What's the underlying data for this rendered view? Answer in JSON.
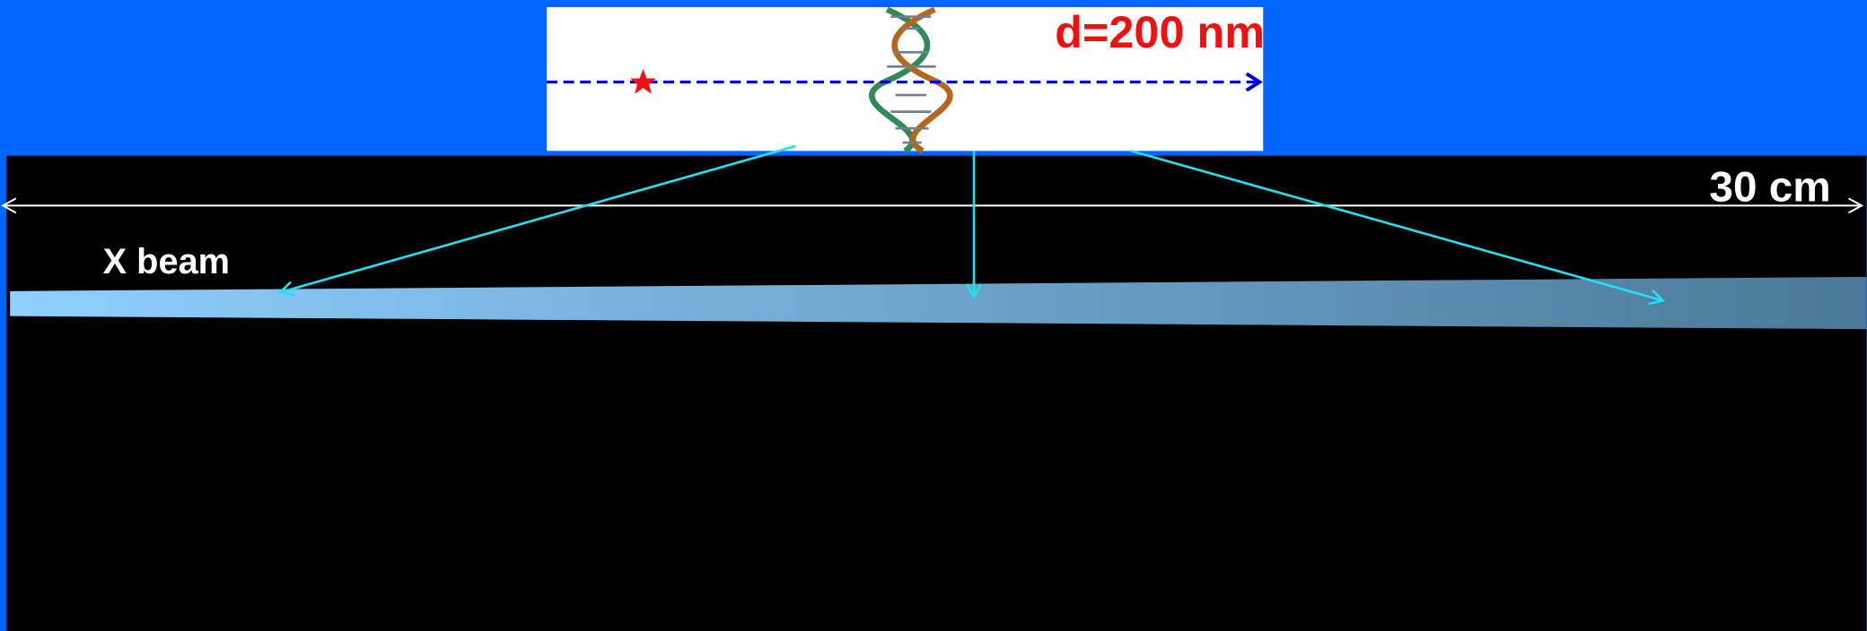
{
  "labels": {
    "distance": "d=200 nm",
    "length": "30 cm",
    "beam": "X beam"
  }
}
